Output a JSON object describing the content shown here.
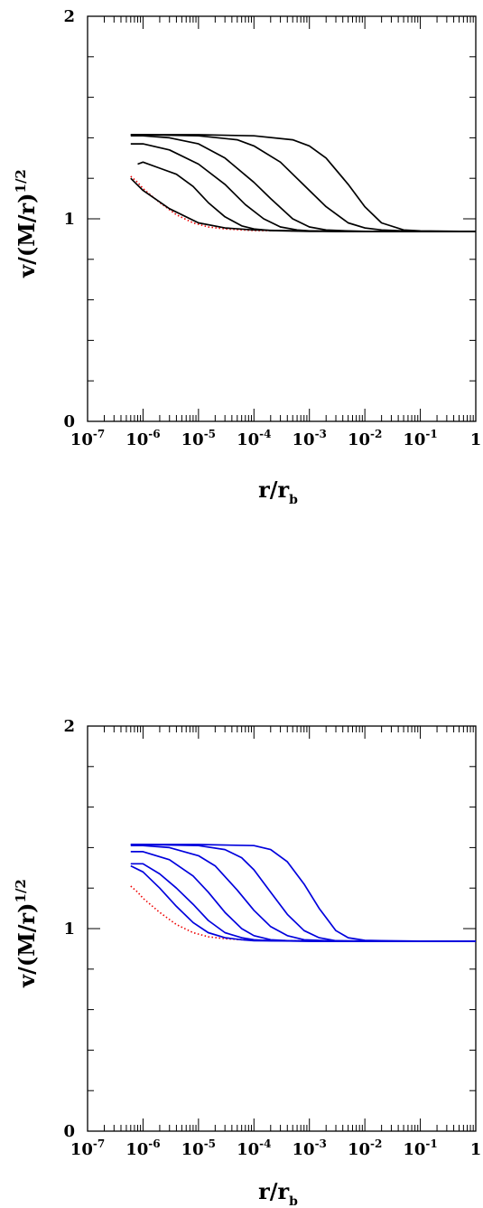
{
  "chart_data": [
    {
      "type": "line",
      "xscale": "log",
      "xlim": [
        1e-07,
        1
      ],
      "ylim": [
        0,
        2
      ],
      "xlabel": {
        "main": "r/r",
        "sub": "b"
      },
      "ylabel": {
        "main": "v/(M/r)",
        "sup": "1/2"
      },
      "xticks": [
        {
          "base": "10",
          "exp": "-7"
        },
        {
          "base": "10",
          "exp": "-6"
        },
        {
          "base": "10",
          "exp": "-5"
        },
        {
          "base": "10",
          "exp": "-4"
        },
        {
          "base": "10",
          "exp": "-3"
        },
        {
          "base": "10",
          "exp": "-2"
        },
        {
          "base": "10",
          "exp": "-1"
        },
        {
          "base": "1",
          "exp": ""
        }
      ],
      "yticks": [
        "0",
        "1",
        "2"
      ],
      "line_color": "#000000",
      "reference_color": "#ee0000",
      "series": [
        {
          "x": [
            6e-07,
            1e-06,
            3e-06,
            1e-05,
            3e-05,
            0.0001,
            0.0003,
            0.001,
            0.003,
            0.01,
            0.1,
            1
          ],
          "values": [
            1.2,
            1.14,
            1.05,
            0.98,
            0.955,
            0.945,
            0.942,
            0.94,
            0.938,
            0.938,
            0.937,
            0.937
          ]
        },
        {
          "x": [
            8e-07,
            1e-06,
            2e-06,
            4e-06,
            8e-06,
            1.5e-05,
            3e-05,
            6e-05,
            0.0001,
            0.0002,
            0.0004,
            0.001,
            0.01,
            0.1,
            1
          ],
          "values": [
            1.27,
            1.28,
            1.25,
            1.22,
            1.16,
            1.08,
            1.01,
            0.965,
            0.95,
            0.942,
            0.94,
            0.938,
            0.938,
            0.937,
            0.937
          ]
        },
        {
          "x": [
            6e-07,
            1e-06,
            3e-06,
            1e-05,
            3e-05,
            7e-05,
            0.00015,
            0.0003,
            0.0006,
            0.001,
            0.003,
            0.01,
            0.1,
            1
          ],
          "values": [
            1.37,
            1.37,
            1.34,
            1.27,
            1.17,
            1.07,
            1.0,
            0.96,
            0.945,
            0.94,
            0.938,
            0.938,
            0.937,
            0.937
          ]
        },
        {
          "x": [
            6e-07,
            1e-06,
            3e-06,
            1e-05,
            3e-05,
            0.0001,
            0.0002,
            0.0005,
            0.001,
            0.002,
            0.005,
            0.01,
            0.1,
            1
          ],
          "values": [
            1.41,
            1.41,
            1.4,
            1.37,
            1.3,
            1.18,
            1.1,
            1.0,
            0.96,
            0.945,
            0.94,
            0.938,
            0.937,
            0.937
          ]
        },
        {
          "x": [
            6e-07,
            1e-06,
            1e-05,
            5e-05,
            0.0001,
            0.0003,
            0.001,
            0.002,
            0.005,
            0.01,
            0.02,
            0.05,
            0.1,
            1
          ],
          "values": [
            1.415,
            1.415,
            1.41,
            1.39,
            1.36,
            1.28,
            1.14,
            1.06,
            0.98,
            0.955,
            0.945,
            0.94,
            0.938,
            0.937
          ]
        },
        {
          "x": [
            6e-07,
            1e-06,
            1e-05,
            0.0001,
            0.0005,
            0.001,
            0.002,
            0.005,
            0.01,
            0.02,
            0.05,
            0.1,
            1
          ],
          "values": [
            1.415,
            1.415,
            1.415,
            1.41,
            1.39,
            1.36,
            1.3,
            1.17,
            1.06,
            0.98,
            0.945,
            0.94,
            0.937
          ]
        }
      ],
      "reference_series": {
        "x": [
          6e-07,
          8e-07,
          1e-06,
          2e-06,
          4e-06,
          8e-06,
          1.5e-05,
          3e-05,
          6e-05,
          0.0001,
          0.001,
          0.01,
          0.1,
          1
        ],
        "values": [
          1.21,
          1.18,
          1.15,
          1.08,
          1.02,
          0.98,
          0.96,
          0.95,
          0.945,
          0.942,
          0.94,
          0.938,
          0.937,
          0.937
        ]
      }
    },
    {
      "type": "line",
      "xscale": "log",
      "xlim": [
        1e-07,
        1
      ],
      "ylim": [
        0,
        2
      ],
      "xlabel": {
        "main": "r/r",
        "sub": "b"
      },
      "ylabel": {
        "main": "v/(M/r)",
        "sup": "1/2"
      },
      "xticks": [
        {
          "base": "10",
          "exp": "-7"
        },
        {
          "base": "10",
          "exp": "-6"
        },
        {
          "base": "10",
          "exp": "-5"
        },
        {
          "base": "10",
          "exp": "-4"
        },
        {
          "base": "10",
          "exp": "-3"
        },
        {
          "base": "10",
          "exp": "-2"
        },
        {
          "base": "10",
          "exp": "-1"
        },
        {
          "base": "1",
          "exp": ""
        }
      ],
      "yticks": [
        "0",
        "1",
        "2"
      ],
      "line_color": "#0000dd",
      "reference_color": "#ee0000",
      "series": [
        {
          "x": [
            6e-07,
            1e-06,
            2e-06,
            4e-06,
            8e-06,
            1.5e-05,
            3e-05,
            6e-05,
            0.0001,
            0.001,
            0.01,
            0.1,
            1
          ],
          "values": [
            1.31,
            1.28,
            1.2,
            1.11,
            1.03,
            0.98,
            0.955,
            0.945,
            0.94,
            0.938,
            0.937,
            0.937,
            0.937
          ]
        },
        {
          "x": [
            6e-07,
            1e-06,
            2e-06,
            4e-06,
            8e-06,
            1.5e-05,
            3e-05,
            6e-05,
            0.0001,
            0.0002,
            0.001,
            0.01,
            0.1,
            1
          ],
          "values": [
            1.32,
            1.32,
            1.27,
            1.2,
            1.12,
            1.04,
            0.98,
            0.955,
            0.945,
            0.94,
            0.938,
            0.937,
            0.937,
            0.937
          ]
        },
        {
          "x": [
            6e-07,
            1e-06,
            3e-06,
            8e-06,
            1.5e-05,
            3e-05,
            6e-05,
            0.0001,
            0.0002,
            0.0004,
            0.001,
            0.01,
            0.1,
            1
          ],
          "values": [
            1.38,
            1.38,
            1.34,
            1.26,
            1.18,
            1.08,
            1.0,
            0.965,
            0.945,
            0.94,
            0.938,
            0.937,
            0.937,
            0.937
          ]
        },
        {
          "x": [
            6e-07,
            1e-06,
            3e-06,
            1e-05,
            2e-05,
            5e-05,
            0.0001,
            0.0002,
            0.0004,
            0.0008,
            0.002,
            0.01,
            0.1,
            1
          ],
          "values": [
            1.41,
            1.41,
            1.4,
            1.36,
            1.31,
            1.19,
            1.09,
            1.01,
            0.965,
            0.945,
            0.94,
            0.938,
            0.937,
            0.937
          ]
        },
        {
          "x": [
            6e-07,
            1e-06,
            1e-05,
            3e-05,
            6e-05,
            0.0001,
            0.0002,
            0.0004,
            0.0008,
            0.0015,
            0.003,
            0.01,
            0.1,
            1
          ],
          "values": [
            1.415,
            1.415,
            1.41,
            1.39,
            1.35,
            1.29,
            1.18,
            1.07,
            0.99,
            0.955,
            0.94,
            0.938,
            0.937,
            0.937
          ]
        },
        {
          "x": [
            6e-07,
            1e-06,
            1e-05,
            0.0001,
            0.0002,
            0.0004,
            0.0008,
            0.0015,
            0.003,
            0.005,
            0.01,
            0.02,
            0.1,
            1
          ],
          "values": [
            1.415,
            1.415,
            1.415,
            1.41,
            1.39,
            1.33,
            1.22,
            1.1,
            0.99,
            0.955,
            0.942,
            0.94,
            0.938,
            0.937
          ]
        }
      ],
      "reference_series": {
        "x": [
          6e-07,
          8e-07,
          1e-06,
          2e-06,
          4e-06,
          8e-06,
          1.5e-05,
          3e-05,
          6e-05,
          0.0001,
          0.001,
          0.01,
          0.1,
          1
        ],
        "values": [
          1.21,
          1.18,
          1.15,
          1.08,
          1.02,
          0.98,
          0.96,
          0.95,
          0.945,
          0.942,
          0.94,
          0.938,
          0.937,
          0.937
        ]
      }
    }
  ]
}
